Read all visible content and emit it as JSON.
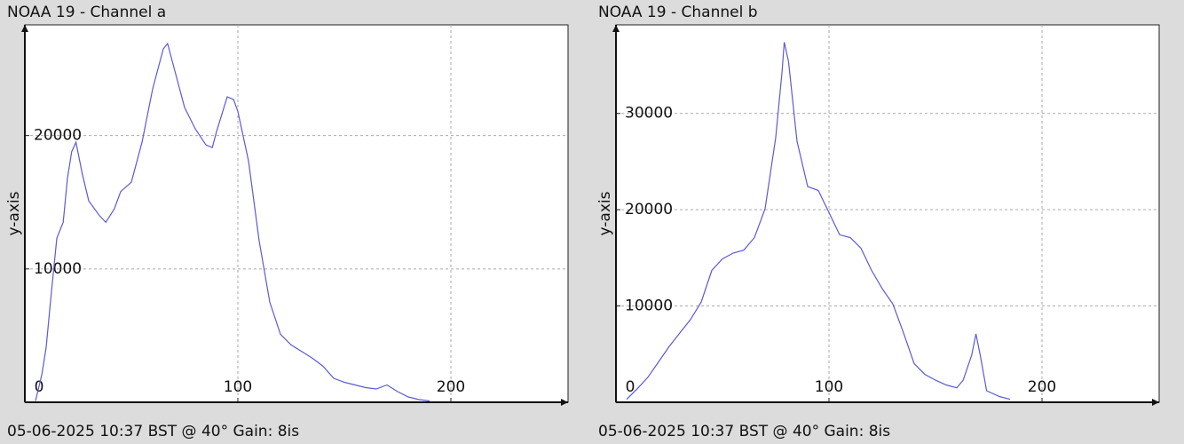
{
  "chart_data": [
    {
      "type": "line",
      "title": "NOAA 19 - Channel a",
      "y_label": "y-axis",
      "caption": "05-06-2025 10:37 BST @ 40° Gain: 8is",
      "x": [
        5,
        8,
        10,
        12,
        15,
        18,
        20,
        22,
        24,
        27,
        30,
        35,
        38,
        42,
        45,
        50,
        55,
        60,
        65,
        67,
        70,
        75,
        80,
        85,
        88,
        90,
        95,
        98,
        100,
        105,
        110,
        115,
        120,
        125,
        130,
        135,
        140,
        145,
        150,
        155,
        160,
        165,
        170,
        175,
        180,
        185,
        190
      ],
      "series": [
        {
          "color": "#5a5ad8",
          "values": [
            100,
            2100,
            4100,
            7500,
            12300,
            13500,
            16800,
            18800,
            19500,
            17100,
            15100,
            14000,
            13500,
            14500,
            15800,
            16500,
            19500,
            23500,
            26500,
            26900,
            25100,
            22100,
            20500,
            19300,
            19100,
            20300,
            22900,
            22700,
            21800,
            18100,
            12100,
            7500,
            5100,
            4300,
            3800,
            3300,
            2700,
            1800,
            1500,
            1300,
            1100,
            1000,
            1300,
            800,
            400,
            200,
            100
          ]
        }
      ],
      "xlim": [
        0,
        255
      ],
      "ylim": [
        0,
        28300
      ],
      "xticks": [
        0,
        100,
        200
      ],
      "yticks": [
        10000,
        20000
      ],
      "grid": true
    },
    {
      "type": "line",
      "title": "NOAA 19 - Channel b",
      "y_label": "y-axis",
      "caption": "05-06-2025 10:37 BST @ 40° Gain: 8is",
      "x": [
        5,
        10,
        15,
        20,
        25,
        30,
        35,
        40,
        45,
        50,
        55,
        60,
        65,
        70,
        75,
        78,
        79,
        81,
        85,
        90,
        95,
        100,
        105,
        110,
        115,
        120,
        125,
        130,
        135,
        140,
        145,
        150,
        155,
        160,
        163,
        167,
        169,
        171,
        174,
        180,
        185
      ],
      "series": [
        {
          "color": "#5a5ad8",
          "values": [
            300,
            1400,
            2600,
            4200,
            5800,
            7200,
            8600,
            10400,
            13700,
            14900,
            15500,
            15800,
            17100,
            20100,
            27500,
            34400,
            37400,
            35400,
            27100,
            22400,
            22000,
            19700,
            17400,
            17100,
            16000,
            13700,
            11800,
            10200,
            7200,
            4000,
            2900,
            2300,
            1800,
            1500,
            2300,
            4900,
            7100,
            4900,
            1200,
            600,
            300
          ]
        }
      ],
      "xlim": [
        0,
        255
      ],
      "ylim": [
        0,
        39200
      ],
      "xticks": [
        0,
        100,
        200
      ],
      "yticks": [
        10000,
        20000,
        30000
      ],
      "grid": true
    }
  ]
}
